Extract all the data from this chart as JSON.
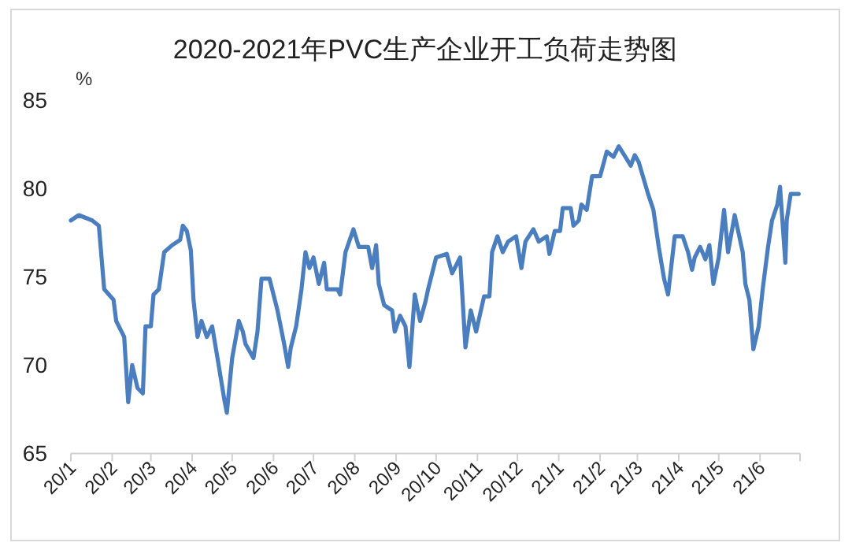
{
  "chart_data": {
    "type": "line",
    "title": "2020-2021年PVC生产企业开工负荷走势图",
    "ylabel": "%",
    "xlim": [
      "2020-01-01",
      "2021-07-01"
    ],
    "ylim": [
      65,
      85
    ],
    "yticks": [
      65,
      70,
      75,
      80,
      85
    ],
    "xticks": [
      {
        "value": "2020-01-01",
        "label": "20/1"
      },
      {
        "value": "2020-02-01",
        "label": "20/2"
      },
      {
        "value": "2020-03-01",
        "label": "20/3"
      },
      {
        "value": "2020-04-01",
        "label": "20/4"
      },
      {
        "value": "2020-05-01",
        "label": "20/5"
      },
      {
        "value": "2020-06-01",
        "label": "20/6"
      },
      {
        "value": "2020-07-01",
        "label": "20/7"
      },
      {
        "value": "2020-08-01",
        "label": "20/8"
      },
      {
        "value": "2020-09-01",
        "label": "20/9"
      },
      {
        "value": "2020-10-01",
        "label": "20/10"
      },
      {
        "value": "2020-11-01",
        "label": "20/11"
      },
      {
        "value": "2020-12-01",
        "label": "20/12"
      },
      {
        "value": "2021-01-01",
        "label": "21/1"
      },
      {
        "value": "2021-02-01",
        "label": "21/2"
      },
      {
        "value": "2021-03-01",
        "label": "21/3"
      },
      {
        "value": "2021-04-01",
        "label": "21/4"
      },
      {
        "value": "2021-05-01",
        "label": "21/5"
      },
      {
        "value": "2021-06-01",
        "label": "21/6"
      },
      {
        "value": "2021-07-01",
        "label": null
      }
    ],
    "x": [
      "2020-01-01",
      "2020-01-07",
      "2020-01-17",
      "2020-01-22",
      "2020-01-26",
      "2020-02-02",
      "2020-02-04",
      "2020-02-10",
      "2020-02-13",
      "2020-02-16",
      "2020-02-20",
      "2020-02-24",
      "2020-02-26",
      "2020-03-01",
      "2020-03-03",
      "2020-03-07",
      "2020-03-11",
      "2020-03-17",
      "2020-03-23",
      "2020-03-25",
      "2020-03-28",
      "2020-03-31",
      "2020-04-02",
      "2020-04-05",
      "2020-04-08",
      "2020-04-12",
      "2020-04-16",
      "2020-04-20",
      "2020-04-25",
      "2020-04-27",
      "2020-05-01",
      "2020-05-06",
      "2020-05-09",
      "2020-05-11",
      "2020-05-17",
      "2020-05-20",
      "2020-05-23",
      "2020-05-29",
      "2020-06-01",
      "2020-06-04",
      "2020-06-09",
      "2020-06-12",
      "2020-06-14",
      "2020-06-18",
      "2020-06-22",
      "2020-06-25",
      "2020-06-28",
      "2020-07-01",
      "2020-07-05",
      "2020-07-09",
      "2020-07-11",
      "2020-07-15",
      "2020-07-19",
      "2020-07-21",
      "2020-07-25",
      "2020-07-31",
      "2020-08-04",
      "2020-08-11",
      "2020-08-14",
      "2020-08-17",
      "2020-08-19",
      "2020-08-23",
      "2020-08-29",
      "2020-08-31",
      "2020-09-04",
      "2020-09-08",
      "2020-09-11",
      "2020-09-15",
      "2020-09-19",
      "2020-09-23",
      "2020-09-25",
      "2020-10-01",
      "2020-10-09",
      "2020-10-13",
      "2020-10-19",
      "2020-10-23",
      "2020-10-27",
      "2020-10-31",
      "2020-11-06",
      "2020-11-10",
      "2020-11-12",
      "2020-11-16",
      "2020-11-20",
      "2020-11-24",
      "2020-11-30",
      "2020-12-04",
      "2020-12-07",
      "2020-12-13",
      "2020-12-17",
      "2020-12-23",
      "2020-12-25",
      "2020-12-29",
      "2021-01-02",
      "2021-01-04",
      "2021-01-10",
      "2021-01-12",
      "2021-01-16",
      "2021-01-18",
      "2021-01-22",
      "2021-01-26",
      "2021-02-01",
      "2021-02-06",
      "2021-02-11",
      "2021-02-15",
      "2021-02-20",
      "2021-02-24",
      "2021-02-27",
      "2021-03-02",
      "2021-03-09",
      "2021-03-13",
      "2021-03-17",
      "2021-03-21",
      "2021-03-24",
      "2021-03-29",
      "2021-04-04",
      "2021-04-08",
      "2021-04-11",
      "2021-04-13",
      "2021-04-17",
      "2021-04-21",
      "2021-04-24",
      "2021-04-27",
      "2021-05-01",
      "2021-05-05",
      "2021-05-08",
      "2021-05-13",
      "2021-05-19",
      "2021-05-21",
      "2021-05-24",
      "2021-05-27",
      "2021-05-31",
      "2021-06-03",
      "2021-06-07",
      "2021-06-10",
      "2021-06-14",
      "2021-06-16",
      "2021-06-20",
      "2021-06-21",
      "2021-06-24",
      "2021-06-30"
    ],
    "series": [
      {
        "color": "#4a7ebf",
        "values": [
          78.2,
          78.5,
          78.2,
          77.9,
          74.3,
          73.7,
          72.5,
          71.6,
          67.9,
          70.0,
          68.7,
          68.4,
          72.2,
          72.2,
          74.0,
          74.3,
          76.4,
          76.8,
          77.1,
          77.9,
          77.6,
          76.5,
          73.7,
          71.6,
          72.5,
          71.6,
          72.2,
          70.4,
          68.1,
          67.3,
          70.4,
          72.5,
          71.9,
          71.2,
          70.4,
          71.9,
          74.9,
          74.9,
          74.0,
          73.1,
          71.2,
          69.9,
          71.0,
          72.2,
          74.3,
          76.4,
          75.5,
          76.1,
          74.6,
          75.8,
          74.3,
          74.3,
          74.3,
          74.0,
          76.4,
          77.7,
          76.7,
          76.7,
          75.5,
          76.8,
          74.6,
          73.4,
          73.1,
          71.9,
          72.8,
          72.2,
          69.9,
          74.0,
          72.5,
          73.6,
          74.3,
          76.1,
          76.3,
          75.2,
          76.1,
          71.0,
          73.1,
          71.9,
          73.9,
          73.9,
          76.4,
          77.3,
          76.4,
          77.0,
          77.3,
          75.5,
          77.0,
          77.7,
          77.0,
          77.3,
          76.3,
          77.6,
          77.6,
          78.9,
          78.9,
          77.9,
          78.2,
          79.1,
          78.8,
          80.7,
          80.7,
          82.1,
          81.8,
          82.4,
          81.8,
          81.3,
          81.9,
          81.5,
          79.7,
          78.8,
          76.7,
          74.9,
          74.0,
          77.3,
          77.3,
          76.4,
          75.4,
          76.1,
          76.7,
          76.0,
          76.8,
          74.6,
          76.1,
          78.8,
          76.4,
          78.5,
          76.4,
          74.6,
          73.7,
          70.9,
          72.2,
          74.3,
          76.7,
          78.2,
          79.1,
          80.1,
          75.8,
          78.2,
          79.7,
          79.7
        ]
      }
    ]
  }
}
